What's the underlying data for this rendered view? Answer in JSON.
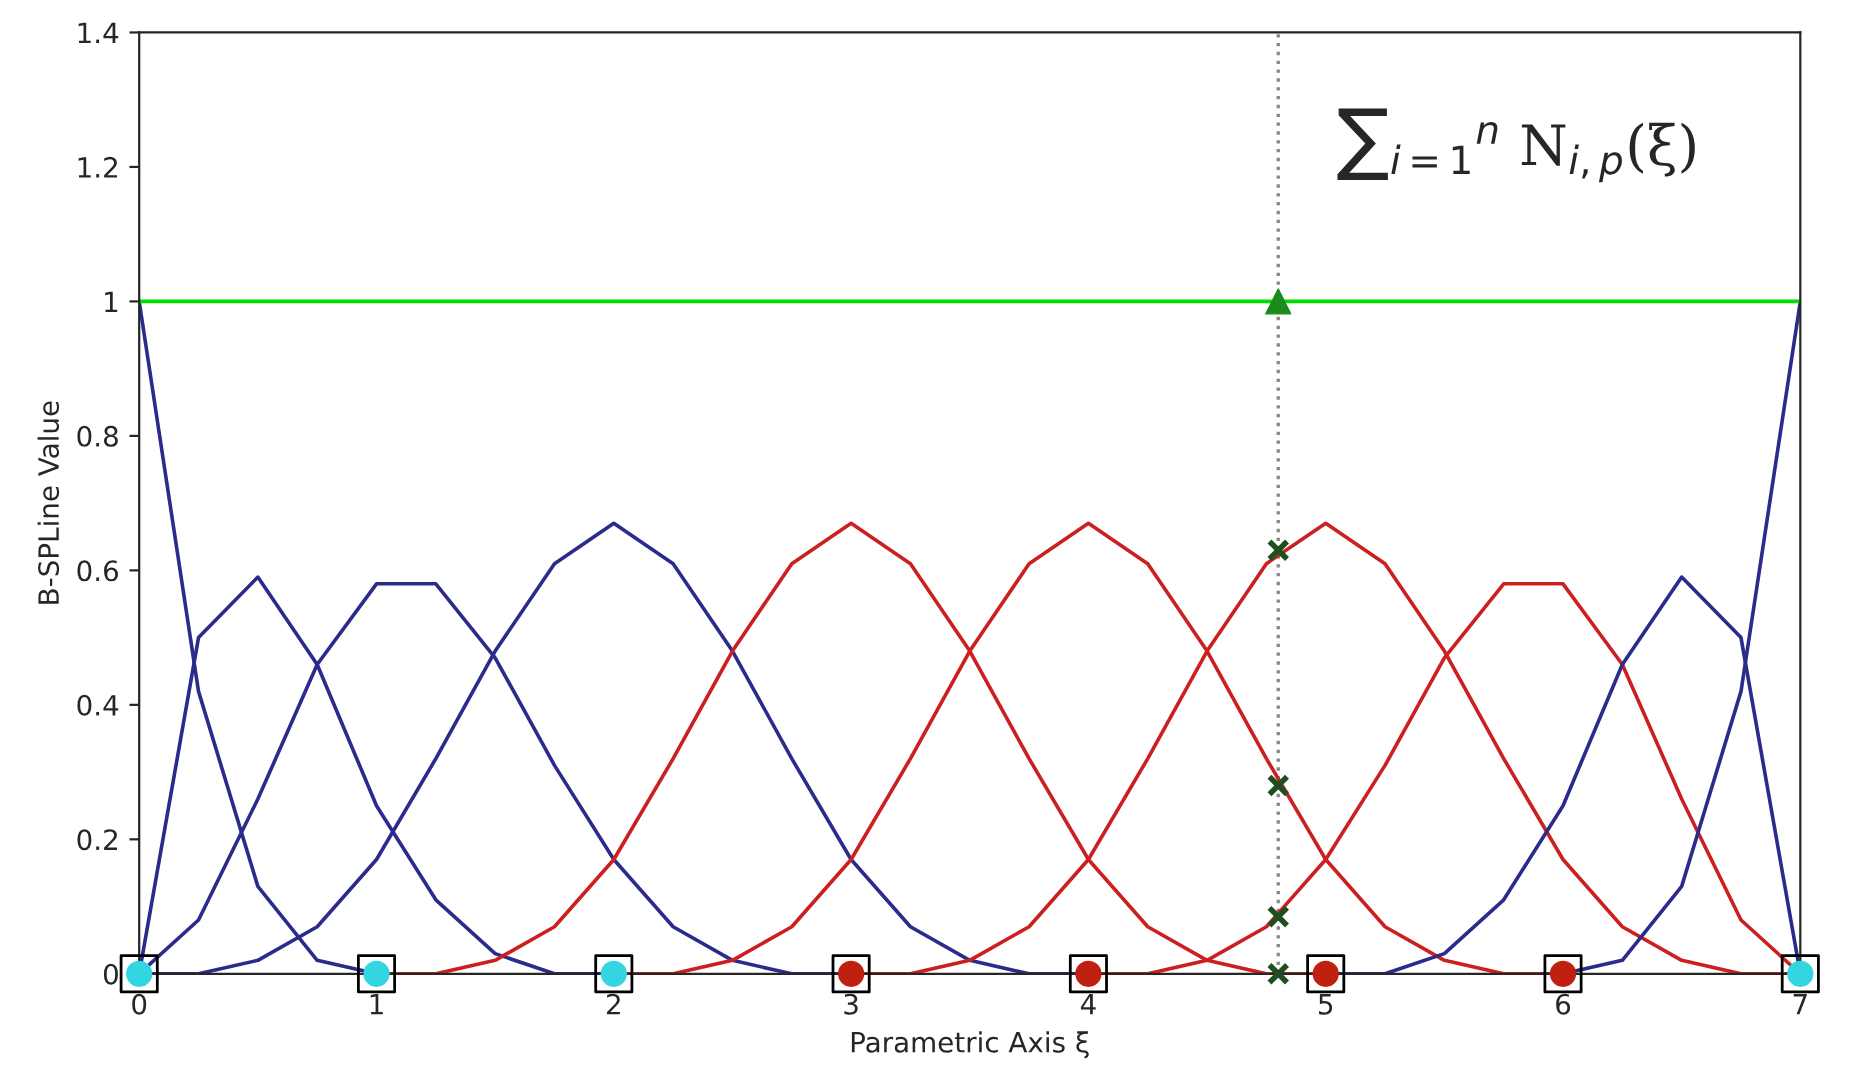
{
  "chart_data": {
    "type": "line",
    "xlabel": "Parametric Axis ξ",
    "ylabel": "B-SPLine Value",
    "annotations": [
      "∑$_{i=1}$$^{n}$ N$_{i,p}$(ξ)"
    ],
    "xlim": [
      0,
      7
    ],
    "ylim": [
      0,
      1.4
    ],
    "xticks": [
      0,
      1,
      2,
      3,
      4,
      5,
      6,
      7
    ],
    "yticks": [
      0,
      0.2,
      0.4,
      0.6,
      0.8,
      1,
      1.2,
      1.4
    ],
    "grid": false,
    "legend": false,
    "ref_lines": [
      {
        "axis": "x",
        "value": 4.8,
        "color": "#888888",
        "line_style": "dotted"
      }
    ],
    "series": [
      {
        "type": "line",
        "color": "#2b2b8c",
        "x": [
          0,
          0.25,
          0.5,
          0.75,
          1
        ],
        "values": [
          1,
          0.42,
          0.13,
          0.02,
          0
        ]
      },
      {
        "type": "line",
        "color": "#2b2b8c",
        "x": [
          0,
          0.25,
          0.5,
          0.75,
          1,
          1.25,
          1.5,
          1.75,
          2
        ],
        "values": [
          0,
          0.5,
          0.59,
          0.46,
          0.25,
          0.11,
          0.03,
          0,
          0
        ]
      },
      {
        "type": "line",
        "color": "#2b2b8c",
        "x": [
          0,
          0.25,
          0.5,
          0.75,
          1,
          1.25,
          1.5,
          1.75,
          2,
          2.25,
          2.5,
          2.75,
          3
        ],
        "values": [
          0,
          0.08,
          0.26,
          0.46,
          0.58,
          0.58,
          0.47,
          0.31,
          0.17,
          0.07,
          0.02,
          0,
          0
        ]
      },
      {
        "type": "line",
        "color": "#2b2b8c",
        "x": [
          0,
          0.25,
          0.5,
          0.75,
          1,
          1.25,
          1.5,
          1.75,
          2,
          2.25,
          2.5,
          2.75,
          3,
          3.25,
          3.5,
          3.75,
          4
        ],
        "values": [
          0,
          0,
          0.02,
          0.07,
          0.17,
          0.32,
          0.48,
          0.61,
          0.67,
          0.61,
          0.48,
          0.32,
          0.17,
          0.07,
          0.02,
          0,
          0
        ]
      },
      {
        "type": "line",
        "color": "#cc2020",
        "x": [
          1,
          1.25,
          1.5,
          1.75,
          2,
          2.25,
          2.5,
          2.75,
          3,
          3.25,
          3.5,
          3.75,
          4,
          4.25,
          4.5,
          4.75,
          5
        ],
        "values": [
          0,
          0,
          0.02,
          0.07,
          0.17,
          0.32,
          0.48,
          0.61,
          0.67,
          0.61,
          0.48,
          0.32,
          0.17,
          0.07,
          0.02,
          0,
          0
        ]
      },
      {
        "type": "line",
        "color": "#cc2020",
        "x": [
          2,
          2.25,
          2.5,
          2.75,
          3,
          3.25,
          3.5,
          3.75,
          4,
          4.25,
          4.5,
          4.75,
          5,
          5.25,
          5.5,
          5.75,
          6
        ],
        "values": [
          0,
          0,
          0.02,
          0.07,
          0.17,
          0.32,
          0.48,
          0.61,
          0.67,
          0.61,
          0.48,
          0.32,
          0.17,
          0.07,
          0.02,
          0,
          0
        ]
      },
      {
        "type": "line",
        "color": "#cc2020",
        "x": [
          3,
          3.25,
          3.5,
          3.75,
          4,
          4.25,
          4.5,
          4.75,
          5,
          5.25,
          5.5,
          5.75,
          6,
          6.25,
          6.5,
          6.75,
          7
        ],
        "values": [
          0,
          0,
          0.02,
          0.07,
          0.17,
          0.32,
          0.48,
          0.61,
          0.67,
          0.61,
          0.48,
          0.32,
          0.17,
          0.07,
          0.02,
          0,
          0
        ]
      },
      {
        "type": "line",
        "color": "#cc2020",
        "x": [
          4,
          4.25,
          4.5,
          4.75,
          5,
          5.25,
          5.5,
          5.75,
          6,
          6.25,
          6.5,
          6.75,
          7
        ],
        "values": [
          0,
          0,
          0.02,
          0.07,
          0.17,
          0.31,
          0.47,
          0.58,
          0.58,
          0.46,
          0.26,
          0.08,
          0
        ]
      },
      {
        "type": "line",
        "color": "#2b2b8c",
        "x": [
          5,
          5.25,
          5.5,
          5.75,
          6,
          6.25,
          6.5,
          6.75,
          7
        ],
        "values": [
          0,
          0,
          0.03,
          0.11,
          0.25,
          0.46,
          0.59,
          0.5,
          0
        ]
      },
      {
        "type": "line",
        "color": "#2b2b8c",
        "x": [
          6,
          6.25,
          6.5,
          6.75,
          7
        ],
        "values": [
          0,
          0.02,
          0.13,
          0.42,
          1
        ]
      },
      {
        "color": "#00dd00",
        "x": [
          0,
          7
        ],
        "values": [
          1,
          1
        ]
      },
      {
        "type": "scatter",
        "marker": "square",
        "color": "#000000",
        "x": [
          0,
          1,
          2,
          3,
          4,
          5,
          6,
          7
        ],
        "values": [
          0,
          0,
          0,
          0,
          0,
          0,
          0,
          0
        ]
      },
      {
        "type": "scatter",
        "marker": "circle",
        "color": "#33d6e0",
        "x": [
          0,
          1,
          2,
          7
        ],
        "values": [
          0,
          0,
          0,
          0
        ]
      },
      {
        "type": "scatter",
        "marker": "circle",
        "color": "#c02010",
        "x": [
          3,
          4,
          5,
          6
        ],
        "values": [
          0,
          0,
          0,
          0
        ]
      },
      {
        "type": "scatter",
        "marker": "cross",
        "color": "#1f4f1f",
        "x": [
          4.8,
          4.8,
          4.8,
          4.8
        ],
        "values": [
          0.63,
          0.28,
          0.085,
          0
        ]
      },
      {
        "type": "scatter",
        "marker": "triangle",
        "color": "#1a8a1a",
        "x": [
          4.8
        ],
        "values": [
          1
        ]
      }
    ]
  }
}
